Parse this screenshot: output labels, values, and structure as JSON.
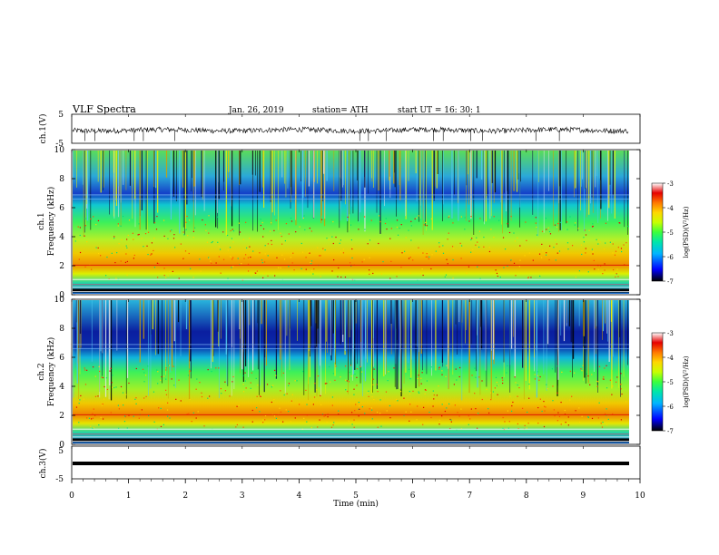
{
  "header": {
    "title": "VLF  Spectra",
    "date": "Jan. 26, 2019",
    "station": "station= ATH",
    "start": "start  UT  =    16: 30: 1"
  },
  "chart_data": [
    {
      "type": "line",
      "panel": "ch1-waveform",
      "ylabel": "ch.1(V)",
      "ylim": [
        -5,
        5
      ],
      "yticks": [
        "5",
        "-5"
      ],
      "x_range_min": [
        0,
        9.8
      ],
      "description_value": "noisy waveform around -0.5 V"
    },
    {
      "type": "heatmap",
      "panel": "ch1-spectrogram",
      "ylabel_top": "ch.1",
      "ylabel": "Frequency  (kHz)",
      "ylim": [
        0,
        10
      ],
      "yticks": [
        "0",
        "2",
        "4",
        "6",
        "8",
        "10"
      ],
      "x_range_min": [
        0,
        9.8
      ],
      "colorbar": {
        "label": "log(PSD)(V²/Hz)",
        "range": [
          -7,
          -3
        ],
        "ticks": [
          "-3",
          "-4",
          "-5",
          "-6",
          "-7"
        ]
      }
    },
    {
      "type": "heatmap",
      "panel": "ch2-spectrogram",
      "ylabel_top": "ch.2",
      "ylabel": "Frequency  (kHz)",
      "ylim": [
        0,
        10
      ],
      "yticks": [
        "0",
        "2",
        "4",
        "6",
        "8",
        "10"
      ],
      "x_range_min": [
        0,
        9.8
      ],
      "colorbar": {
        "label": "log(PSD)(V²/Hz)",
        "range": [
          -7,
          -3
        ],
        "ticks": [
          "-3",
          "-4",
          "-5",
          "-6",
          "-7"
        ]
      }
    },
    {
      "type": "line",
      "panel": "ch3-waveform",
      "ylabel": "ch.3(V)",
      "ylim": [
        -5,
        5
      ],
      "yticks": [
        "5",
        "-5"
      ],
      "x_range_min": [
        0,
        9.8
      ],
      "description_value": "flat thick trace near -2 V"
    }
  ],
  "xaxis": {
    "label": "Time  (min)",
    "ticks": [
      "0",
      "1",
      "2",
      "3",
      "4",
      "5",
      "6",
      "7",
      "8",
      "9",
      "10"
    ],
    "xlim": [
      0,
      10
    ]
  },
  "colormap": [
    "#000000",
    "#0000ff",
    "#00b4ff",
    "#00e6aa",
    "#3cff3c",
    "#c8ff00",
    "#ffd700",
    "#ff7800",
    "#e60000",
    "#ffffff"
  ]
}
